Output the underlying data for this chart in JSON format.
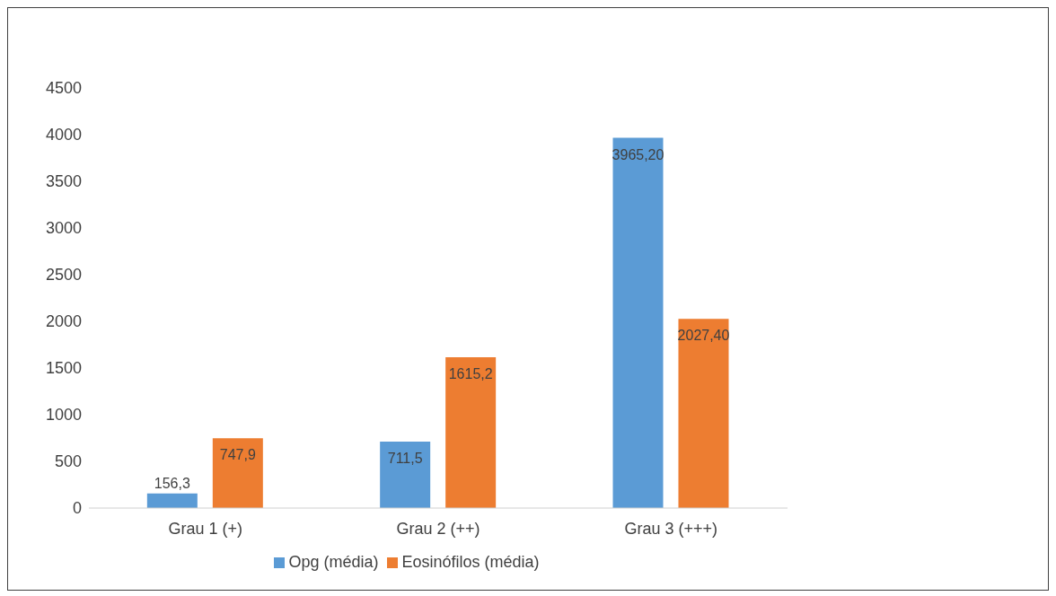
{
  "chart_data": {
    "type": "bar",
    "categories": [
      "Grau 1 (+)",
      "Grau 2 (++)",
      "Grau 3 (+++)"
    ],
    "series": [
      {
        "name": "Opg (média)",
        "color": "#5b9bd5",
        "values": [
          156.3,
          711.5,
          3965.2
        ],
        "value_labels": [
          "156,3",
          "711,5",
          "3965,20"
        ]
      },
      {
        "name": "Eosinófilos (média)",
        "color": "#ed7d31",
        "values": [
          747.9,
          1615.2,
          2027.4
        ],
        "value_labels": [
          "747,9",
          "1615,2",
          "2027,40"
        ]
      }
    ],
    "ylim": [
      0,
      4500
    ],
    "yticks": [
      0,
      500,
      1000,
      1500,
      2000,
      2500,
      3000,
      3500,
      4000,
      4500
    ],
    "grid": false,
    "legend": "bottom"
  }
}
